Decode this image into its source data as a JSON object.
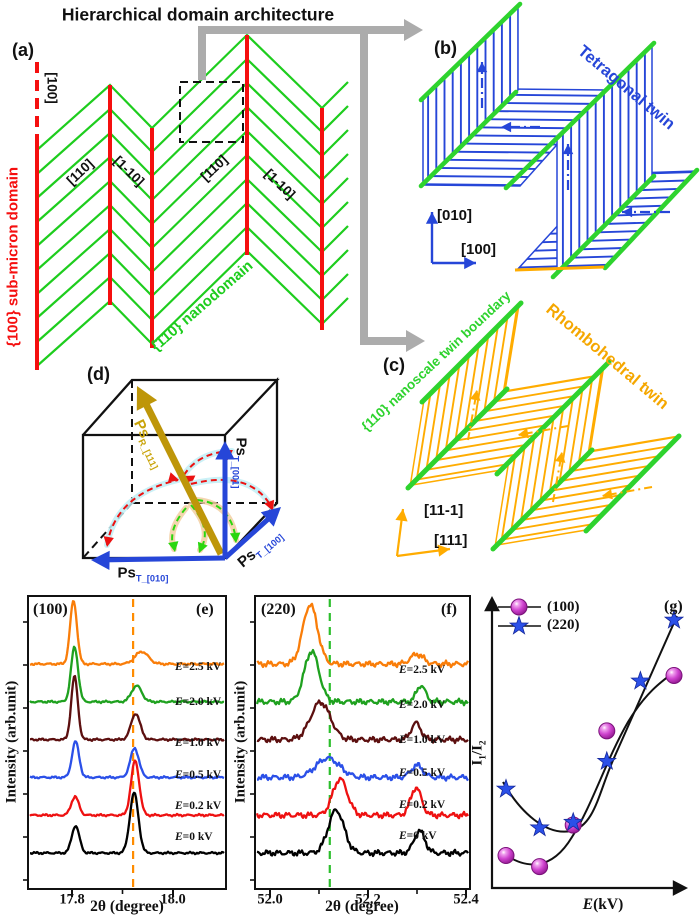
{
  "title": "Hierarchical domain architecture",
  "colors": {
    "domain_green": "#1ECD1E",
    "domain_red": "#F50F0F",
    "tetra_blue": "#2646D8",
    "rhombo_orange": "#FFAC00",
    "rhombo_text": "#F5A700",
    "boundary_green": "#2ED32E",
    "connector_gray": "#ACACAC",
    "gold_arrow": "#BE9609",
    "magenta": "#C43BC4",
    "star_blue": "#2B50E8"
  },
  "panel_a": {
    "label": "(a)",
    "dir_top": "[100]",
    "dirs": [
      "[110]",
      "[1-10]",
      "[110]",
      "[1-10]"
    ],
    "submicron": "{100} sub-micron domain",
    "nanodomain": "{110} nanodomain"
  },
  "panel_b": {
    "label": "(b)",
    "title": "Tetragonal twin",
    "axis_up": "[010]",
    "axis_right": "[100]"
  },
  "panel_c": {
    "label": "(c)",
    "title": "Rhombohedral twin",
    "boundary": "{110} nanoscale twin boundary",
    "axis_up": "[11-1]",
    "axis_right": "[111]"
  },
  "panel_d": {
    "label": "(d)",
    "ps_r": {
      "main": "Ps",
      "sub": "R_[111]"
    },
    "ps_001": {
      "main": "Ps",
      "sub": "T_[001]"
    },
    "ps_010": {
      "main": "Ps",
      "sub": "T_[010]"
    },
    "ps_100": {
      "main": "Ps",
      "sub": "T_[100]"
    }
  },
  "chart_data": [
    {
      "type": "line",
      "panel": "(e)",
      "title": "(100)",
      "xlabel": "2θ (degree)",
      "ylabel": "Intensity (arb.unit)",
      "xlim": [
        17.713,
        18.105
      ],
      "x_ticks": [
        17.8,
        18.0
      ],
      "x_minor_ticks": [
        17.9
      ],
      "dashed_guide_x": 17.921,
      "guide_color": "#FF8C00",
      "grid": false,
      "series": [
        {
          "name": "E=0 kV",
          "color": "#000000",
          "peaks": [
            {
              "center": 17.807,
              "amp": 0.44,
              "width": 0.0075
            },
            {
              "center": 17.923,
              "amp": 0.97,
              "width": 0.0085
            }
          ]
        },
        {
          "name": "E=0.2 kV",
          "color": "#EE1111",
          "peaks": [
            {
              "center": 17.806,
              "amp": 0.3,
              "width": 0.0075
            },
            {
              "center": 17.925,
              "amp": 0.88,
              "width": 0.008
            }
          ]
        },
        {
          "name": "E=0.5 kV",
          "color": "#2B50E8",
          "peaks": [
            {
              "center": 17.807,
              "amp": 0.58,
              "width": 0.007
            },
            {
              "center": 17.924,
              "amp": 0.47,
              "width": 0.0085
            }
          ]
        },
        {
          "name": "E=1.0 kV",
          "color": "#5C0F0F",
          "peaks": [
            {
              "center": 17.805,
              "amp": 1.02,
              "width": 0.0065
            },
            {
              "center": 17.926,
              "amp": 0.42,
              "width": 0.009
            }
          ]
        },
        {
          "name": "E=2.0 kV",
          "color": "#1FA11F",
          "peaks": [
            {
              "center": 17.805,
              "amp": 0.88,
              "width": 0.007
            },
            {
              "center": 17.928,
              "amp": 0.26,
              "width": 0.01
            }
          ]
        },
        {
          "name": "E=2.5 kV",
          "color": "#F97D09",
          "peaks": [
            {
              "center": 17.803,
              "amp": 1.02,
              "width": 0.0068
            },
            {
              "center": 17.938,
              "amp": 0.2,
              "width": 0.013
            }
          ]
        }
      ]
    },
    {
      "type": "line",
      "panel": "(f)",
      "title": "(220)",
      "xlabel": "2θ (degree)",
      "ylabel": "Intensity (arb.unit)",
      "xlim": [
        51.955,
        52.405
      ],
      "x_ticks": [
        52.0,
        52.2,
        52.4
      ],
      "x_minor_ticks": [
        52.1,
        52.3
      ],
      "dashed_guide_x": 52.122,
      "guide_color": "#2CBE2C",
      "grid": false,
      "series": [
        {
          "name": "E=0 kV",
          "color": "#000000",
          "peaks": [
            {
              "center": 52.135,
              "amp": 0.78,
              "width": 0.016
            },
            {
              "center": 52.305,
              "amp": 0.4,
              "width": 0.011
            }
          ]
        },
        {
          "name": "E=0.2 kV",
          "color": "#EE1111",
          "peaks": [
            {
              "center": 52.143,
              "amp": 0.66,
              "width": 0.015
            },
            {
              "center": 52.298,
              "amp": 0.5,
              "width": 0.011
            }
          ]
        },
        {
          "name": "E=0.5 kV",
          "color": "#2B50E8",
          "peaks": [
            {
              "center": 52.118,
              "amp": 0.35,
              "width": 0.024
            },
            {
              "center": 52.3,
              "amp": 0.22,
              "width": 0.012
            }
          ]
        },
        {
          "name": "E=1.0 kV",
          "color": "#5C0F0F",
          "peaks": [
            {
              "center": 52.103,
              "amp": 0.68,
              "width": 0.02
            },
            {
              "center": 52.298,
              "amp": 0.3,
              "width": 0.01
            }
          ]
        },
        {
          "name": "E=2.0 kV",
          "color": "#1FA11F",
          "peaks": [
            {
              "center": 52.085,
              "amp": 0.92,
              "width": 0.015
            },
            {
              "center": 52.308,
              "amp": 0.3,
              "width": 0.009
            }
          ]
        },
        {
          "name": "E=2.5 kV",
          "color": "#F97D09",
          "peaks": [
            {
              "center": 52.082,
              "amp": 1.08,
              "width": 0.015
            },
            {
              "center": 52.3,
              "amp": 0.18,
              "width": 0.013
            }
          ]
        }
      ]
    },
    {
      "type": "scatter",
      "panel": "(g)",
      "xlabel_main": "E",
      "xlabel_rest": "(kV)",
      "ylabel_parts": {
        "p1": "I",
        "s1": "1",
        "p2": "/I",
        "s2": "2"
      },
      "x_values": [
        0,
        0.2,
        0.5,
        1.0,
        2.0,
        2.5
      ],
      "legend": [
        {
          "label": "(100)",
          "marker": "sphere"
        },
        {
          "label": "(220)",
          "marker": "star"
        }
      ],
      "series": [
        {
          "name": "(100)",
          "marker": "sphere",
          "color": "#C43BC4",
          "x": [
            0,
            0.2,
            0.5,
            1.0,
            2.5
          ],
          "y": [
            0.11,
            0.07,
            0.22,
            0.56,
            0.76
          ]
        },
        {
          "name": "(220)",
          "marker": "star",
          "color": "#2B50E8",
          "x": [
            0,
            0.2,
            0.5,
            1.0,
            2.0,
            2.5
          ],
          "y": [
            0.35,
            0.21,
            0.23,
            0.45,
            0.74,
            0.96
          ]
        }
      ],
      "fit_curves": true
    }
  ]
}
